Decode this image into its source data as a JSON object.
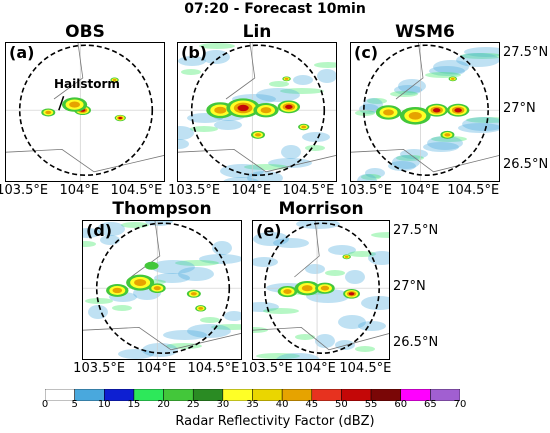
{
  "figure": {
    "title": "07:20 - Forecast 10min"
  },
  "chart_data": {
    "type": "heatmap",
    "title": "07:20 - Forecast 10min",
    "panels": [
      {
        "id": "a",
        "label": "(a)",
        "title": "OBS",
        "annotation": "Hailstorm",
        "cells": [
          [
            104.02,
            27.0,
            0.6,
            55
          ],
          [
            103.95,
            27.05,
            0.9,
            45
          ],
          [
            103.72,
            26.98,
            0.5,
            48
          ],
          [
            104.35,
            26.93,
            0.4,
            55
          ],
          [
            104.3,
            27.27,
            0.3,
            40
          ]
        ]
      },
      {
        "id": "b",
        "label": "(b)",
        "title": "Lin",
        "annotation": "",
        "cells": [
          [
            103.72,
            27.0,
            1.0,
            45
          ],
          [
            103.92,
            27.02,
            1.2,
            50
          ],
          [
            104.12,
            27.0,
            0.9,
            48
          ],
          [
            104.32,
            27.03,
            0.8,
            50
          ],
          [
            104.05,
            26.78,
            0.5,
            40
          ],
          [
            104.45,
            26.85,
            0.4,
            45
          ],
          [
            104.3,
            27.28,
            0.3,
            45
          ]
        ]
      },
      {
        "id": "c",
        "label": "(c)",
        "title": "WSM6",
        "annotation": "",
        "cells": [
          [
            103.7,
            26.98,
            0.9,
            45
          ],
          [
            103.95,
            26.95,
            1.1,
            45
          ],
          [
            104.15,
            27.0,
            0.8,
            50
          ],
          [
            104.35,
            27.0,
            0.8,
            55
          ],
          [
            104.25,
            26.78,
            0.5,
            40
          ],
          [
            104.3,
            27.28,
            0.3,
            45
          ]
        ]
      },
      {
        "id": "d",
        "label": "(d)",
        "title": "Thompson",
        "annotation": "",
        "cells": [
          [
            103.65,
            26.98,
            0.8,
            40
          ],
          [
            103.85,
            27.05,
            1.0,
            45
          ],
          [
            104.0,
            27.0,
            0.6,
            40
          ],
          [
            104.32,
            26.95,
            0.5,
            45
          ],
          [
            104.38,
            26.82,
            0.4,
            40
          ],
          [
            103.95,
            27.2,
            0.5,
            25
          ]
        ]
      },
      {
        "id": "e",
        "label": "(e)",
        "title": "Morrison",
        "annotation": "",
        "cells": [
          [
            103.7,
            26.97,
            0.7,
            45
          ],
          [
            103.9,
            27.0,
            0.9,
            45
          ],
          [
            104.08,
            27.0,
            0.7,
            40
          ],
          [
            104.35,
            26.95,
            0.6,
            50
          ],
          [
            104.3,
            27.28,
            0.3,
            45
          ]
        ]
      }
    ],
    "x_ticks": [
      "103.5°E",
      "104°E",
      "104.5°E"
    ],
    "y_ticks": [
      "27.5°N",
      "27°N",
      "26.5°N"
    ],
    "xlim": [
      103.35,
      104.75
    ],
    "ylim": [
      26.35,
      27.6
    ],
    "range_circle": {
      "center": [
        104.05,
        27.0
      ],
      "radius_deg": 0.58
    },
    "colorbar": {
      "label": "Radar Reflectivity Factor (dBZ)",
      "ticks": [
        0,
        5,
        10,
        15,
        20,
        25,
        30,
        35,
        40,
        45,
        50,
        55,
        60,
        65,
        70
      ],
      "colors": [
        "#ffffff",
        "#49a8dd",
        "#0d1fd2",
        "#2de85a",
        "#43c73a",
        "#2a8b23",
        "#ffff26",
        "#ead600",
        "#e6a300",
        "#e7321f",
        "#c40707",
        "#7a0606",
        "#ff00ff",
        "#a15fd1",
        "#a58ad6"
      ]
    }
  }
}
